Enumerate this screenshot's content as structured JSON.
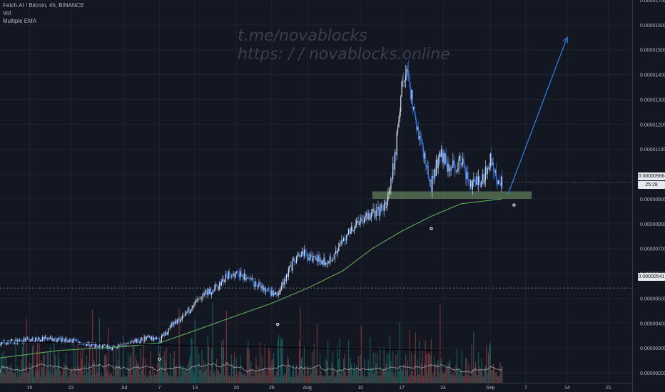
{
  "legend": {
    "symbol": "Fetch.AI / Bitcoin, 4h, BINANCE",
    "indicator_1": "Vol",
    "indicator_2": "Multiple EMA"
  },
  "watermark": {
    "line1": "t.me/novablocks",
    "line2": "https: / / novablocks.online"
  },
  "price_tags": {
    "last_price": "0.00000966",
    "countdown": "25:28",
    "crosshair_price": "0.00000541"
  },
  "colors": {
    "background": "#131722",
    "candle_up": "#dde1ea",
    "candle_down": "#3179f5",
    "ema": "#5d9e59",
    "support_zone": "#8fbf7a",
    "arrow": "#2b7bdc",
    "volume_up": "#26a69a",
    "volume_down": "#ef5350",
    "volume_ma": "#d1d4dc"
  },
  "chart_data": {
    "type": "candlestick",
    "symbol": "FETBTC",
    "timeframe": "4h",
    "exchange": "BINANCE",
    "y_axis": {
      "min": 1.6e-06,
      "max": 1.7e-05,
      "ticks": [
        "0.00001700",
        "0.00001600",
        "0.00001500",
        "0.00001400",
        "0.00001300",
        "0.00001200",
        "0.00001100",
        "0.00001000",
        "0.00000900",
        "0.00000800",
        "0.00000700",
        "0.00000600",
        "0.00000500",
        "0.00000400",
        "0.00000300",
        "0.00000200"
      ]
    },
    "x_axis": {
      "ticks": [
        {
          "label": "15",
          "date": "2019-06-15"
        },
        {
          "label": "22",
          "date": "2019-06-22"
        },
        {
          "label": "Jul",
          "date": "2019-07-01"
        },
        {
          "label": "7",
          "date": "2019-07-07"
        },
        {
          "label": "13",
          "date": "2019-07-13"
        },
        {
          "label": "20",
          "date": "2019-07-20"
        },
        {
          "label": "26",
          "date": "2019-07-26"
        },
        {
          "label": "Aug",
          "date": "2019-08-01"
        },
        {
          "label": "10",
          "date": "2019-08-10"
        },
        {
          "label": "17",
          "date": "2019-08-17"
        },
        {
          "label": "24",
          "date": "2019-08-24"
        },
        {
          "label": "Sep",
          "date": "2019-09-01"
        },
        {
          "label": "7",
          "date": "2019-09-07"
        },
        {
          "label": "14",
          "date": "2019-09-14"
        },
        {
          "label": "21",
          "date": "2019-09-21"
        }
      ]
    },
    "price_path": [
      {
        "date": "2019-06-10",
        "price": 3.2e-06
      },
      {
        "date": "2019-06-14",
        "price": 3.3e-06
      },
      {
        "date": "2019-06-18",
        "price": 3.35e-06
      },
      {
        "date": "2019-06-22",
        "price": 3.3e-06
      },
      {
        "date": "2019-06-26",
        "price": 3.1e-06
      },
      {
        "date": "2019-06-29",
        "price": 3e-06
      },
      {
        "date": "2019-07-02",
        "price": 3.2e-06
      },
      {
        "date": "2019-07-05",
        "price": 3.4e-06
      },
      {
        "date": "2019-07-07",
        "price": 3.3e-06
      },
      {
        "date": "2019-07-09",
        "price": 3.9e-06
      },
      {
        "date": "2019-07-11",
        "price": 4.3e-06
      },
      {
        "date": "2019-07-13",
        "price": 4.8e-06
      },
      {
        "date": "2019-07-15",
        "price": 5.2e-06
      },
      {
        "date": "2019-07-17",
        "price": 5.5e-06
      },
      {
        "date": "2019-07-19",
        "price": 6e-06
      },
      {
        "date": "2019-07-21",
        "price": 5.9e-06
      },
      {
        "date": "2019-07-23",
        "price": 5.6e-06
      },
      {
        "date": "2019-07-25",
        "price": 5.3e-06
      },
      {
        "date": "2019-07-27",
        "price": 5.1e-06
      },
      {
        "date": "2019-07-29",
        "price": 6.2e-06
      },
      {
        "date": "2019-07-31",
        "price": 6.8e-06
      },
      {
        "date": "2019-08-02",
        "price": 6.6e-06
      },
      {
        "date": "2019-08-04",
        "price": 6.5e-06
      },
      {
        "date": "2019-08-06",
        "price": 6.8e-06
      },
      {
        "date": "2019-08-08",
        "price": 7.7e-06
      },
      {
        "date": "2019-08-10",
        "price": 8.2e-06
      },
      {
        "date": "2019-08-12",
        "price": 8.4e-06
      },
      {
        "date": "2019-08-14",
        "price": 8.6e-06
      },
      {
        "date": "2019-08-15",
        "price": 9.3e-06
      },
      {
        "date": "2019-08-16",
        "price": 1.1e-05
      },
      {
        "date": "2019-08-17",
        "price": 1.35e-05
      },
      {
        "date": "2019-08-18",
        "price": 1.42e-05
      },
      {
        "date": "2019-08-19",
        "price": 1.25e-05
      },
      {
        "date": "2019-08-20",
        "price": 1.15e-05
      },
      {
        "date": "2019-08-21",
        "price": 1.05e-05
      },
      {
        "date": "2019-08-22",
        "price": 9.5e-06
      },
      {
        "date": "2019-08-23",
        "price": 1.05e-05
      },
      {
        "date": "2019-08-24",
        "price": 1.08e-05
      },
      {
        "date": "2019-08-25",
        "price": 1.02e-05
      },
      {
        "date": "2019-08-27",
        "price": 1.05e-05
      },
      {
        "date": "2019-08-29",
        "price": 9.5e-06
      },
      {
        "date": "2019-08-31",
        "price": 9.9e-06
      },
      {
        "date": "2019-09-01",
        "price": 1.07e-05
      },
      {
        "date": "2019-09-02",
        "price": 9.8e-06
      },
      {
        "date": "2019-09-03",
        "price": 9.66e-06
      }
    ],
    "ema_path": [
      {
        "date": "2019-06-10",
        "price": 2.6e-06
      },
      {
        "date": "2019-06-20",
        "price": 2.9e-06
      },
      {
        "date": "2019-07-01",
        "price": 3.05e-06
      },
      {
        "date": "2019-07-07",
        "price": 3.2e-06
      },
      {
        "date": "2019-07-13",
        "price": 3.7e-06
      },
      {
        "date": "2019-07-20",
        "price": 4.3e-06
      },
      {
        "date": "2019-07-26",
        "price": 4.8e-06
      },
      {
        "date": "2019-08-01",
        "price": 5.4e-06
      },
      {
        "date": "2019-08-07",
        "price": 6.1e-06
      },
      {
        "date": "2019-08-12",
        "price": 7e-06
      },
      {
        "date": "2019-08-17",
        "price": 7.7e-06
      },
      {
        "date": "2019-08-22",
        "price": 8.3e-06
      },
      {
        "date": "2019-08-27",
        "price": 8.8e-06
      },
      {
        "date": "2019-09-03",
        "price": 9e-06
      }
    ],
    "annotations": {
      "support_zone": {
        "price_low": 9e-06,
        "price_high": 9.3e-06,
        "date_start": "2019-08-12",
        "date_end": "2019-09-08"
      },
      "trendline": {
        "start_date": "2019-06-10",
        "start_price": 3.25e-06,
        "end_date": "2019-08-24",
        "end_price": 2.9e-06
      },
      "projection_arrow": {
        "start_date": "2019-09-04",
        "start_price": 9.2e-06,
        "end_date": "2019-09-14",
        "end_price": 1.55e-05
      },
      "dividend_markers": [
        {
          "date": "2019-07-07",
          "price": 2.55e-06
        },
        {
          "date": "2019-07-27",
          "price": 3.95e-06
        },
        {
          "date": "2019-08-22",
          "price": 7.8e-06
        },
        {
          "date": "2019-09-05",
          "price": 8.75e-06
        }
      ]
    }
  }
}
